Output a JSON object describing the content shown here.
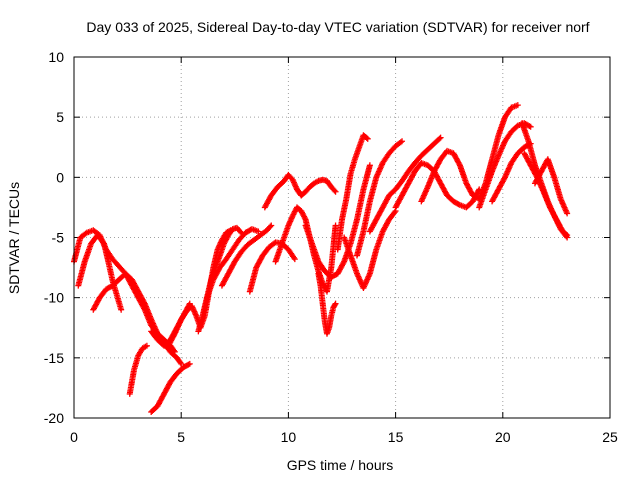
{
  "chart_data": {
    "type": "scatter",
    "title": "Day 033 of 2025, Sidereal Day-to-day VTEC variation (SDTVAR) for receiver norf",
    "xlabel": "GPS time / hours",
    "ylabel": "SDTVAR / TECUs",
    "xlim": [
      0,
      25
    ],
    "ylim": [
      -20,
      10
    ],
    "xticks": [
      "0",
      "5",
      "10",
      "15",
      "20",
      "25"
    ],
    "yticks": [
      "-20",
      "-15",
      "-10",
      "-5",
      "0",
      "5",
      "10"
    ],
    "grid": true,
    "marker": "plus",
    "color": "#ff0000",
    "series": [
      {
        "x": [
          0.0,
          0.3,
          0.6,
          0.9,
          1.2,
          1.5,
          1.8,
          2.1,
          2.4
        ],
        "y": [
          -7.0,
          -5.0,
          -4.6,
          -4.4,
          -4.8,
          -6.0,
          -6.8,
          -7.4,
          -8.0
        ]
      },
      {
        "x": [
          0.2,
          0.5,
          0.8,
          1.1,
          1.4,
          1.6,
          1.8,
          2.0,
          2.2
        ],
        "y": [
          -9.0,
          -7.0,
          -5.5,
          -4.8,
          -5.5,
          -7.0,
          -8.6,
          -9.8,
          -11.0
        ]
      },
      {
        "x": [
          0.9,
          1.2,
          1.5,
          1.8,
          2.1,
          2.4,
          2.7,
          3.0,
          3.3,
          3.6,
          3.9,
          4.2,
          4.5,
          4.8,
          5.0
        ],
        "y": [
          -11.0,
          -10.0,
          -9.3,
          -9.0,
          -8.5,
          -8.0,
          -8.5,
          -9.5,
          -10.5,
          -11.8,
          -13.0,
          -13.8,
          -14.5,
          -15.0,
          -15.5
        ]
      },
      {
        "x": [
          2.4,
          2.7,
          3.0,
          3.3,
          3.6,
          3.9,
          4.2,
          4.5,
          4.7
        ],
        "y": [
          -8.0,
          -9.0,
          -10.0,
          -11.0,
          -12.3,
          -13.0,
          -13.5,
          -14.0,
          -14.5
        ]
      },
      {
        "x": [
          2.6,
          2.8,
          3.0,
          3.2,
          3.4
        ],
        "y": [
          -18.0,
          -16.0,
          -14.8,
          -14.2,
          -14.0
        ]
      },
      {
        "x": [
          3.6,
          3.9,
          4.2,
          4.5,
          4.8,
          5.1,
          5.4
        ],
        "y": [
          -19.5,
          -19.0,
          -18.0,
          -17.0,
          -16.3,
          -15.8,
          -15.5
        ]
      },
      {
        "x": [
          3.6,
          3.9,
          4.2,
          4.5,
          4.8,
          5.1,
          5.4
        ],
        "y": [
          -12.8,
          -13.5,
          -14.0,
          -13.5,
          -12.5,
          -11.5,
          -10.5
        ]
      },
      {
        "x": [
          4.4,
          4.7,
          5.0,
          5.3,
          5.5,
          5.7,
          5.9,
          6.1,
          6.3,
          6.5,
          6.7,
          6.9,
          7.1,
          7.3
        ],
        "y": [
          -14.0,
          -13.0,
          -11.8,
          -11.0,
          -10.7,
          -11.5,
          -12.5,
          -11.5,
          -9.5,
          -7.5,
          -6.0,
          -5.2,
          -4.6,
          -4.4
        ]
      },
      {
        "x": [
          5.8,
          6.0,
          6.2,
          6.4,
          6.6,
          6.8,
          7.0,
          7.2,
          7.4,
          7.6,
          7.8
        ],
        "y": [
          -12.8,
          -11.5,
          -10.0,
          -8.5,
          -7.5,
          -6.5,
          -5.5,
          -4.8,
          -4.3,
          -4.2,
          -4.6
        ]
      },
      {
        "x": [
          6.2,
          6.5,
          6.8,
          7.1,
          7.4,
          7.7,
          8.0,
          8.3,
          8.6
        ],
        "y": [
          -10.0,
          -8.5,
          -7.5,
          -6.8,
          -6.0,
          -5.2,
          -4.6,
          -4.3,
          -4.5
        ]
      },
      {
        "x": [
          6.9,
          7.2,
          7.5,
          7.8,
          8.1,
          8.4,
          8.7,
          9.0,
          9.2
        ],
        "y": [
          -9.0,
          -8.0,
          -7.0,
          -6.2,
          -5.6,
          -5.2,
          -4.8,
          -4.4,
          -4.0
        ]
      },
      {
        "x": [
          8.2,
          8.5,
          8.8,
          9.1,
          9.4,
          9.7,
          10.0,
          10.3
        ],
        "y": [
          -9.5,
          -7.5,
          -6.5,
          -5.8,
          -5.4,
          -5.5,
          -6.0,
          -6.8
        ]
      },
      {
        "x": [
          8.9,
          9.2,
          9.5,
          9.8,
          10.0,
          10.2,
          10.4,
          10.6
        ],
        "y": [
          -2.5,
          -1.5,
          -0.8,
          -0.3,
          0.2,
          -0.2,
          -1.0,
          -1.5
        ]
      },
      {
        "x": [
          9.4,
          9.6,
          9.8,
          10.0,
          10.2,
          10.4,
          10.6,
          10.8,
          11.0,
          11.2,
          11.4,
          11.6,
          11.8,
          12.0,
          12.2
        ],
        "y": [
          -7.0,
          -6.0,
          -5.0,
          -4.0,
          -3.2,
          -2.5,
          -2.8,
          -3.5,
          -5.0,
          -6.5,
          -7.8,
          -8.8,
          -9.5,
          -7.5,
          -4.0
        ]
      },
      {
        "x": [
          10.4,
          10.6,
          10.8,
          11.0,
          11.2,
          11.4,
          11.6,
          11.8,
          12.0,
          12.2
        ],
        "y": [
          -1.0,
          -1.5,
          -1.2,
          -0.8,
          -0.5,
          -0.3,
          -0.2,
          -0.3,
          -0.8,
          -1.2
        ]
      },
      {
        "x": [
          11.4,
          11.5,
          11.6,
          11.7,
          11.8,
          11.9,
          12.0,
          12.1,
          12.2
        ],
        "y": [
          -8.0,
          -9.0,
          -10.5,
          -12.0,
          -13.0,
          -12.5,
          -11.5,
          -10.8,
          -10.5
        ]
      },
      {
        "x": [
          10.8,
          11.1,
          11.4,
          11.7,
          12.0,
          12.3,
          12.6,
          12.9,
          13.2,
          13.5,
          13.8
        ],
        "y": [
          -4.0,
          -5.5,
          -7.0,
          -7.8,
          -8.3,
          -8.0,
          -7.0,
          -5.5,
          -3.5,
          -1.0,
          1.0
        ]
      },
      {
        "x": [
          12.3,
          12.5,
          12.7,
          12.9,
          13.1,
          13.3,
          13.5,
          13.7
        ],
        "y": [
          -6.0,
          -3.5,
          -1.8,
          0.3,
          1.5,
          2.5,
          3.5,
          3.2
        ]
      },
      {
        "x": [
          12.6,
          12.9,
          13.2,
          13.5,
          13.8,
          14.1,
          14.4,
          14.7,
          15.0
        ],
        "y": [
          -5.0,
          -6.5,
          -8.0,
          -9.2,
          -8.0,
          -6.0,
          -4.5,
          -3.5,
          -2.8
        ]
      },
      {
        "x": [
          13.8,
          14.1,
          14.4,
          14.7,
          15.0,
          15.3,
          15.6,
          15.9,
          16.2,
          16.5,
          16.8,
          17.1
        ],
        "y": [
          -4.5,
          -3.5,
          -2.5,
          -1.5,
          -1.0,
          -0.3,
          0.5,
          1.2,
          1.8,
          2.3,
          2.8,
          3.3
        ]
      },
      {
        "x": [
          13.2,
          13.5,
          13.8,
          14.1,
          14.4,
          14.7,
          15.0,
          15.3
        ],
        "y": [
          -6.5,
          -4.5,
          -2.0,
          0.0,
          1.2,
          2.0,
          2.6,
          3.0
        ]
      },
      {
        "x": [
          15.0,
          15.3,
          15.6,
          15.9,
          16.2,
          16.5,
          16.8,
          17.1,
          17.4,
          17.7,
          18.0,
          18.3,
          18.6,
          18.9
        ],
        "y": [
          -2.5,
          -1.5,
          -0.5,
          0.5,
          1.2,
          1.0,
          0.5,
          -0.5,
          -1.5,
          -2.0,
          -2.3,
          -2.5,
          -2.0,
          -1.0
        ]
      },
      {
        "x": [
          16.2,
          16.5,
          16.8,
          17.1,
          17.4,
          17.7,
          18.0,
          18.3,
          18.6,
          18.9,
          19.2,
          19.5,
          19.8,
          20.1,
          20.4,
          20.7
        ],
        "y": [
          -2.0,
          -0.8,
          0.5,
          1.5,
          2.2,
          2.0,
          1.0,
          -0.5,
          -1.5,
          -1.8,
          -0.5,
          1.5,
          3.5,
          5.0,
          5.8,
          6.0
        ]
      },
      {
        "x": [
          18.9,
          19.2,
          19.5,
          19.8,
          20.1,
          20.4,
          20.7,
          21.0,
          21.3
        ],
        "y": [
          -2.5,
          -1.0,
          0.5,
          1.8,
          3.0,
          3.8,
          4.3,
          4.5,
          4.2
        ]
      },
      {
        "x": [
          19.5,
          19.8,
          20.1,
          20.4,
          20.7,
          21.0,
          21.3
        ],
        "y": [
          -2.0,
          -1.0,
          0.0,
          1.2,
          2.0,
          2.5,
          2.8
        ]
      },
      {
        "x": [
          20.9,
          21.2,
          21.5,
          21.8,
          22.1,
          22.4,
          22.7,
          23.0
        ],
        "y": [
          4.5,
          3.0,
          1.0,
          -0.5,
          -2.0,
          -3.2,
          -4.3,
          -5.0
        ]
      },
      {
        "x": [
          21.0,
          21.3,
          21.6,
          21.9,
          22.2,
          22.5,
          22.8,
          23.0
        ],
        "y": [
          2.0,
          1.0,
          0.0,
          -1.2,
          -2.5,
          -3.5,
          -4.5,
          -4.8
        ]
      },
      {
        "x": [
          21.5,
          21.8,
          22.1,
          22.4,
          22.7,
          23.0
        ],
        "y": [
          -0.5,
          0.5,
          1.5,
          0.0,
          -1.8,
          -3.0
        ]
      }
    ]
  }
}
